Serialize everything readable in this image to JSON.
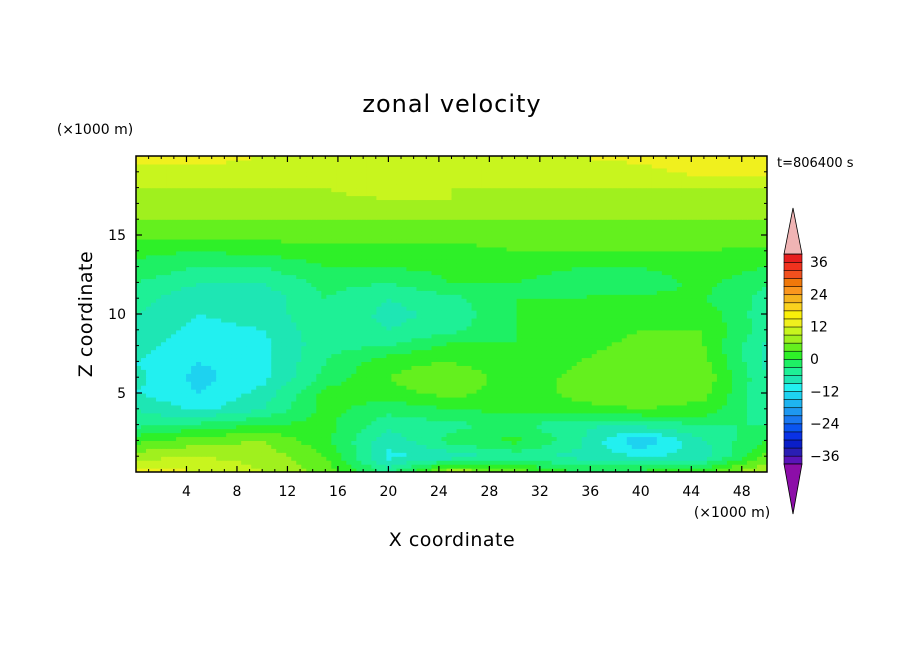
{
  "chart_data": {
    "type": "heatmap",
    "title": "zonal velocity",
    "xlabel": "X coordinate",
    "ylabel": "Z coordinate",
    "x_unit": "(×1000 m)",
    "y_unit": "(×1000 m)",
    "time_label": "t=806400 s",
    "xlim": [
      0,
      50
    ],
    "ylim": [
      0,
      20
    ],
    "x_ticks": [
      4,
      8,
      12,
      16,
      20,
      24,
      28,
      32,
      36,
      40,
      44,
      48
    ],
    "y_ticks": [
      5,
      10,
      15
    ],
    "colorbar": {
      "levels": [
        -42,
        -39,
        -36,
        -33,
        -30,
        -27,
        -24,
        -21,
        -18,
        -15,
        -12,
        -9,
        -6,
        -3,
        0,
        3,
        6,
        9,
        12,
        15,
        18,
        21,
        24,
        27,
        30,
        33,
        36,
        39,
        42
      ],
      "tick_labels": [
        "36",
        "24",
        "12",
        "0",
        "−12",
        "−24",
        "−36"
      ],
      "tick_values": [
        36,
        24,
        12,
        0,
        -12,
        -24,
        -36
      ],
      "colors": [
        "#8c0ea8",
        "#5a14b8",
        "#2a1eb4",
        "#0a1ec8",
        "#0a32e6",
        "#0a55f0",
        "#1a78f0",
        "#1e98f0",
        "#1eb4f0",
        "#1ed2f0",
        "#22f0f0",
        "#1ee6b4",
        "#1ef096",
        "#1ef064",
        "#2ef028",
        "#64f01e",
        "#a0f01e",
        "#c8f51e",
        "#f0f01e",
        "#faf00a",
        "#fad21e",
        "#f5b41e",
        "#fa961e",
        "#f0780a",
        "#f0501e",
        "#f0321e",
        "#e61e1e",
        "#f0b4b4"
      ],
      "extend": "both"
    },
    "field": {
      "x": [
        0,
        5,
        10,
        15,
        20,
        25,
        30,
        35,
        40,
        45,
        50
      ],
      "z": [
        0,
        1,
        2,
        3,
        4,
        5,
        6,
        7,
        8,
        9,
        10,
        11,
        12,
        13,
        14,
        15,
        16,
        17,
        18,
        19,
        20
      ],
      "values": [
        [
          14,
          12,
          9,
          5,
          -4,
          9,
          5,
          0,
          1,
          3,
          10
        ],
        [
          8,
          9,
          8,
          3,
          -10,
          -8,
          -5,
          -7,
          -9,
          -8,
          4
        ],
        [
          2,
          5,
          6,
          1,
          -8,
          -2,
          1,
          -5,
          -15,
          -6,
          0
        ],
        [
          -4,
          -2,
          0,
          1,
          -5,
          -4,
          -2,
          -6,
          -5,
          -3,
          -3
        ],
        [
          -6,
          -10,
          -6,
          1,
          -2,
          0,
          1,
          2,
          3,
          2,
          -5
        ],
        [
          -9,
          -12,
          -8,
          1,
          2,
          4,
          1,
          4,
          5,
          4,
          -6
        ],
        [
          -8,
          -13,
          -10,
          -2,
          3,
          6,
          1,
          4,
          6,
          5,
          -6
        ],
        [
          -9,
          -12,
          -10,
          -3,
          2,
          3,
          0,
          3,
          5,
          4,
          -7
        ],
        [
          -8,
          -11,
          -10,
          -4,
          -3,
          1,
          0,
          2,
          4,
          3,
          -7
        ],
        [
          -7,
          -10,
          -9,
          -4,
          -6,
          -4,
          0,
          1,
          3,
          3,
          -5
        ],
        [
          -6,
          -9,
          -8,
          -3,
          -7,
          -5,
          0,
          0,
          2,
          2,
          -5
        ],
        [
          -5,
          -8,
          -8,
          -3,
          -6,
          -4,
          0,
          0,
          1,
          0,
          -4
        ],
        [
          -3,
          -6,
          -6,
          -2,
          -3,
          0,
          0,
          -1,
          -2,
          1,
          -3
        ],
        [
          -1,
          -3,
          -3,
          0,
          0,
          1,
          1,
          0,
          0,
          2,
          0
        ],
        [
          1,
          0,
          1,
          2,
          2,
          2,
          3,
          3,
          3,
          3,
          2
        ],
        [
          4,
          4,
          4,
          4,
          4,
          4,
          4,
          4,
          4,
          5,
          5
        ],
        [
          6,
          6,
          6,
          6,
          6,
          6,
          6,
          6,
          6,
          6,
          6
        ],
        [
          8,
          8,
          8,
          8,
          8,
          9,
          8,
          7,
          8,
          8,
          8
        ],
        [
          9,
          9,
          9,
          9,
          11,
          9,
          9,
          9,
          9,
          9,
          9
        ],
        [
          11,
          11,
          11,
          11,
          10,
          10,
          10,
          10,
          11,
          13,
          13
        ],
        [
          13,
          13,
          12,
          12,
          12,
          12,
          12,
          12,
          13,
          14,
          14
        ]
      ]
    }
  }
}
